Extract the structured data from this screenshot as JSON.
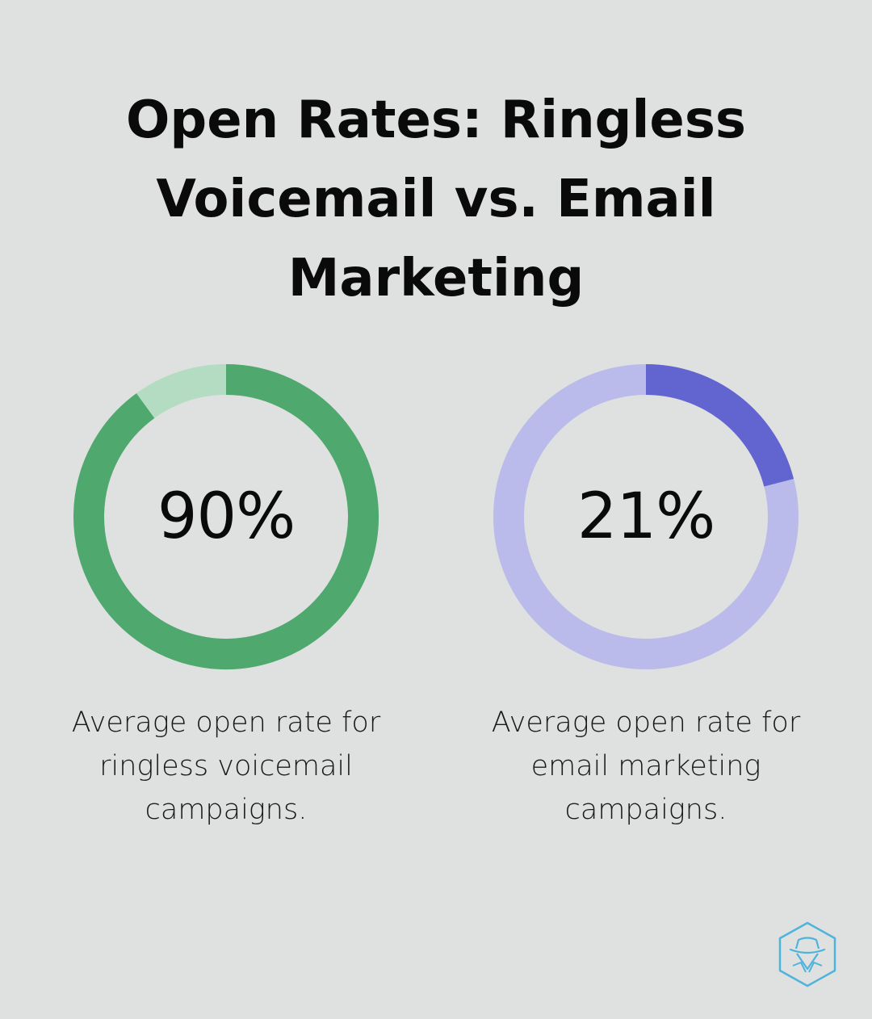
{
  "title_lines": [
    "Open Rates: Ringless",
    "Voicemail vs. Email",
    "Marketing"
  ],
  "colors": {
    "background": "#dfe1e0",
    "voicemail_fill": "#4fa86d",
    "voicemail_track": "#b4dcc2",
    "email_fill": "#6265d0",
    "email_track": "#babbea",
    "logo": "#4fb3dc"
  },
  "chart_data": [
    {
      "type": "pie",
      "subtype": "donut",
      "label": "90%",
      "value": 90,
      "max": 100,
      "caption_lines": [
        "Average open rate for",
        "ringless voicemail",
        "campaigns."
      ]
    },
    {
      "type": "pie",
      "subtype": "donut",
      "label": "21%",
      "value": 21,
      "max": 100,
      "caption_lines": [
        "Average open rate for",
        "email marketing",
        "campaigns."
      ]
    }
  ],
  "logo": {
    "icon": "detective-hat-icon"
  }
}
